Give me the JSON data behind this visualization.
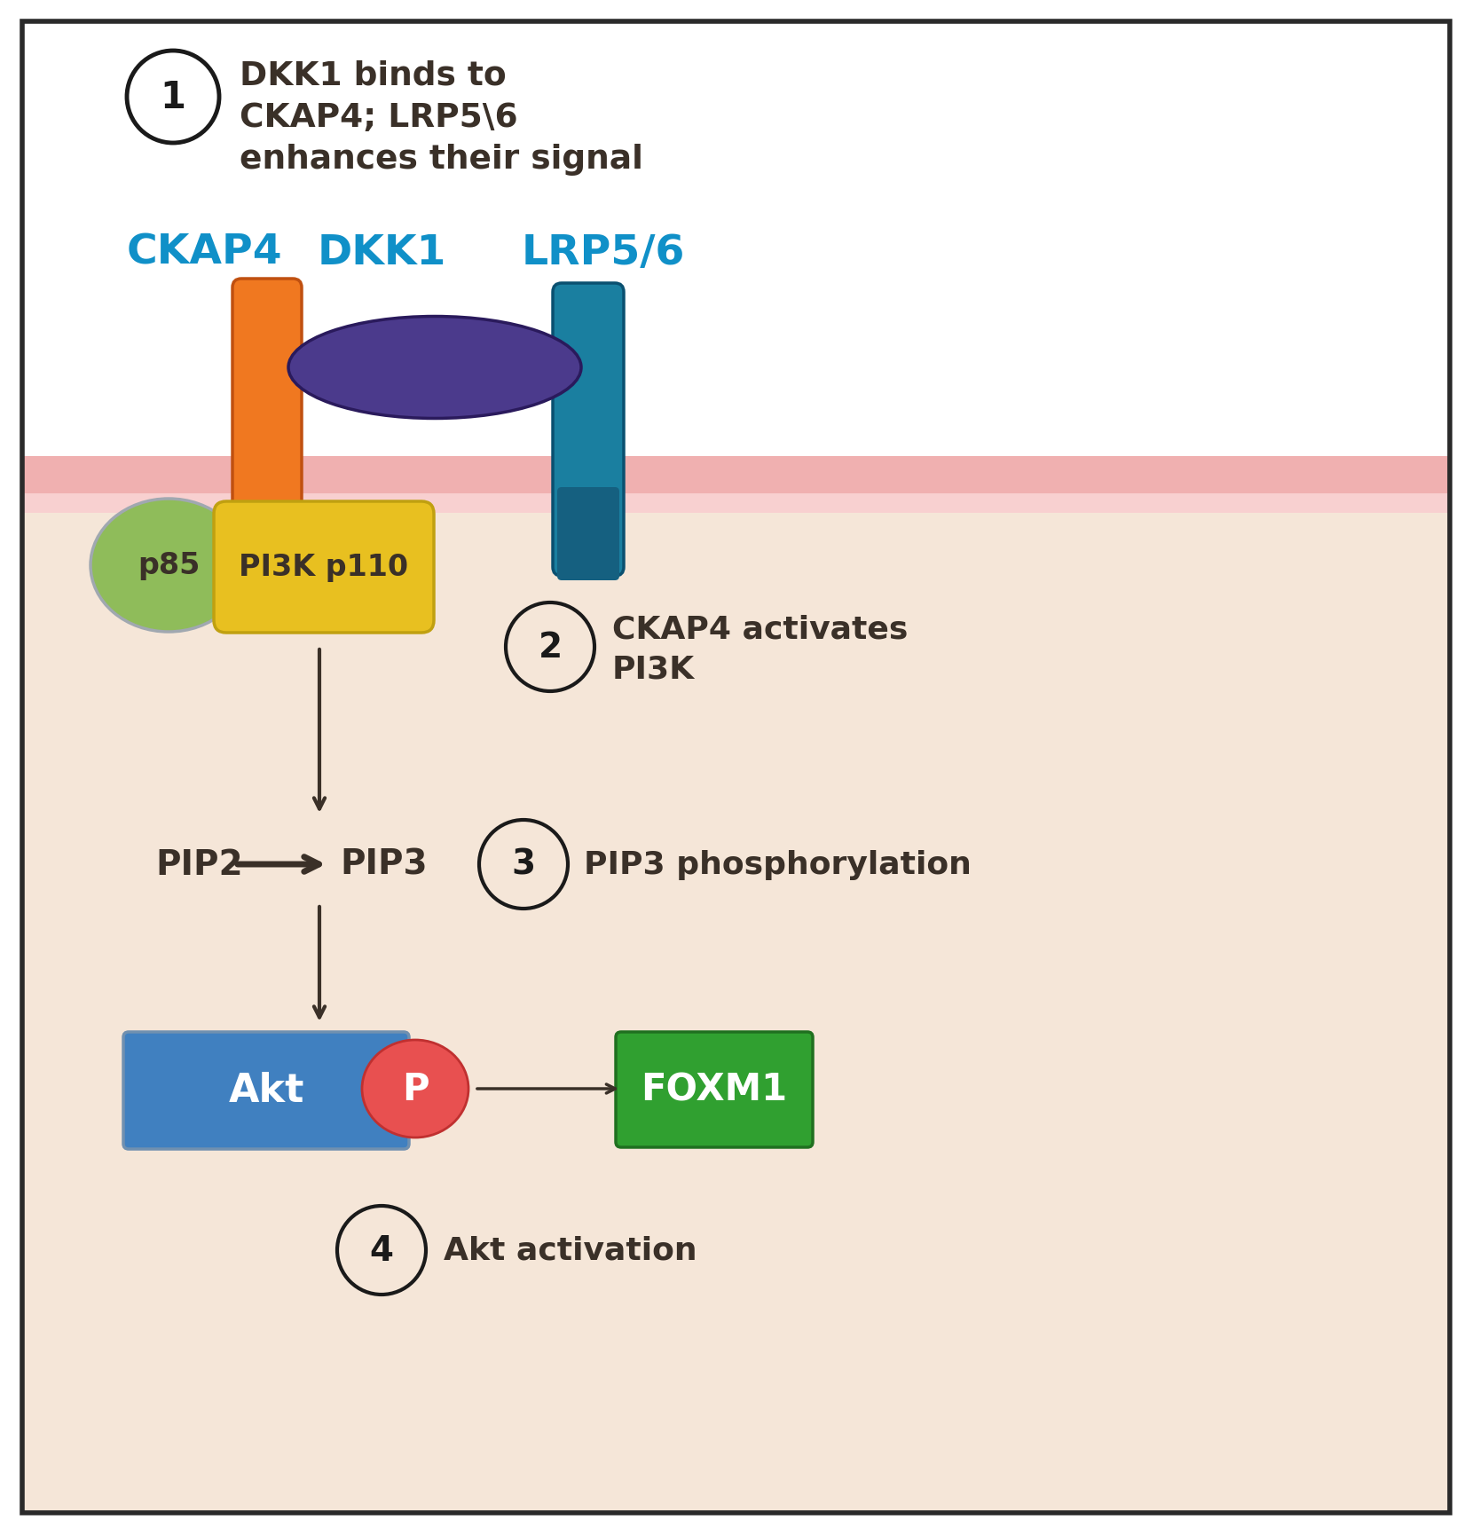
{
  "bg_white": "#ffffff",
  "bg_cell": "#f5e6d8",
  "membrane_color1": "#f0b0b0",
  "membrane_color2": "#f8d0d0",
  "ckap4_color": "#f07820",
  "ckap4_edge": "#c05010",
  "dkk1_color": "#4b3a8c",
  "dkk1_edge": "#2a1a5c",
  "lrp56_color": "#1a7fa0",
  "lrp56_edge": "#0a5070",
  "lrp56_bottom": "#156080",
  "p85_color": "#8fbc5a",
  "p85_edge": "#a0a8b0",
  "pi3k_color": "#e8c020",
  "pi3k_edge": "#c0a010",
  "akt_color": "#4080c0",
  "akt_edge": "#7090b0",
  "p_color": "#e85050",
  "p_edge": "#c03030",
  "foxm1_color": "#30a030",
  "foxm1_edge": "#207020",
  "label_blue": "#1090c8",
  "arrow_color": "#3a3028",
  "text_dark": "#3a3028",
  "number_circle_color": "#1a1a1a",
  "border_color": "#2a2a2a",
  "fig_w": 16.59,
  "fig_h": 17.31,
  "dpi": 100,
  "xlim": [
    0,
    1659
  ],
  "ylim": [
    0,
    1731
  ]
}
